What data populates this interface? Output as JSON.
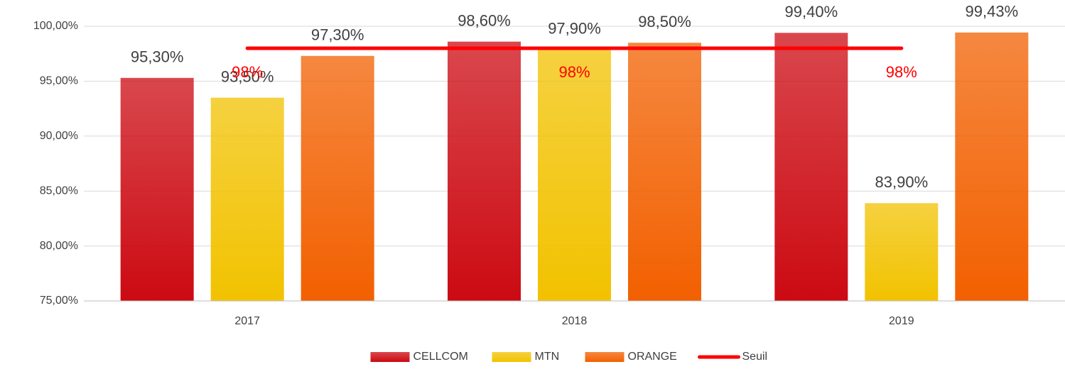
{
  "chart_data": {
    "type": "bar",
    "categories": [
      "2017",
      "2018",
      "2019"
    ],
    "series": [
      {
        "name": "CELLCOM",
        "color": "#cc0a12",
        "values": [
          95.3,
          98.6,
          99.4
        ],
        "value_labels": [
          "95,30%",
          "98,60%",
          "99,40%"
        ]
      },
      {
        "name": "MTN",
        "color": "#f2c200",
        "values": [
          93.5,
          97.9,
          83.9
        ],
        "value_labels": [
          "93,50%",
          "97,90%",
          "83,90%"
        ]
      },
      {
        "name": "ORANGE",
        "color": "#f26000",
        "values": [
          97.3,
          98.5,
          99.43
        ],
        "value_labels": [
          "97,30%",
          "98,50%",
          "99,43%"
        ]
      },
      {
        "name": "Seuil",
        "type": "line",
        "color": "#ff0000",
        "values": [
          98,
          98,
          98
        ],
        "value_labels": [
          "98%",
          "98%",
          "98%"
        ]
      }
    ],
    "ylim": [
      75,
      100
    ],
    "yticks": [
      {
        "value": 75,
        "label": "75,00%"
      },
      {
        "value": 80,
        "label": "80,00%"
      },
      {
        "value": 85,
        "label": "85,00%"
      },
      {
        "value": 90,
        "label": "90,00%"
      },
      {
        "value": 95,
        "label": "95,00%"
      },
      {
        "value": 100,
        "label": "100,00%"
      }
    ],
    "grid": true,
    "legend": "bottom"
  }
}
